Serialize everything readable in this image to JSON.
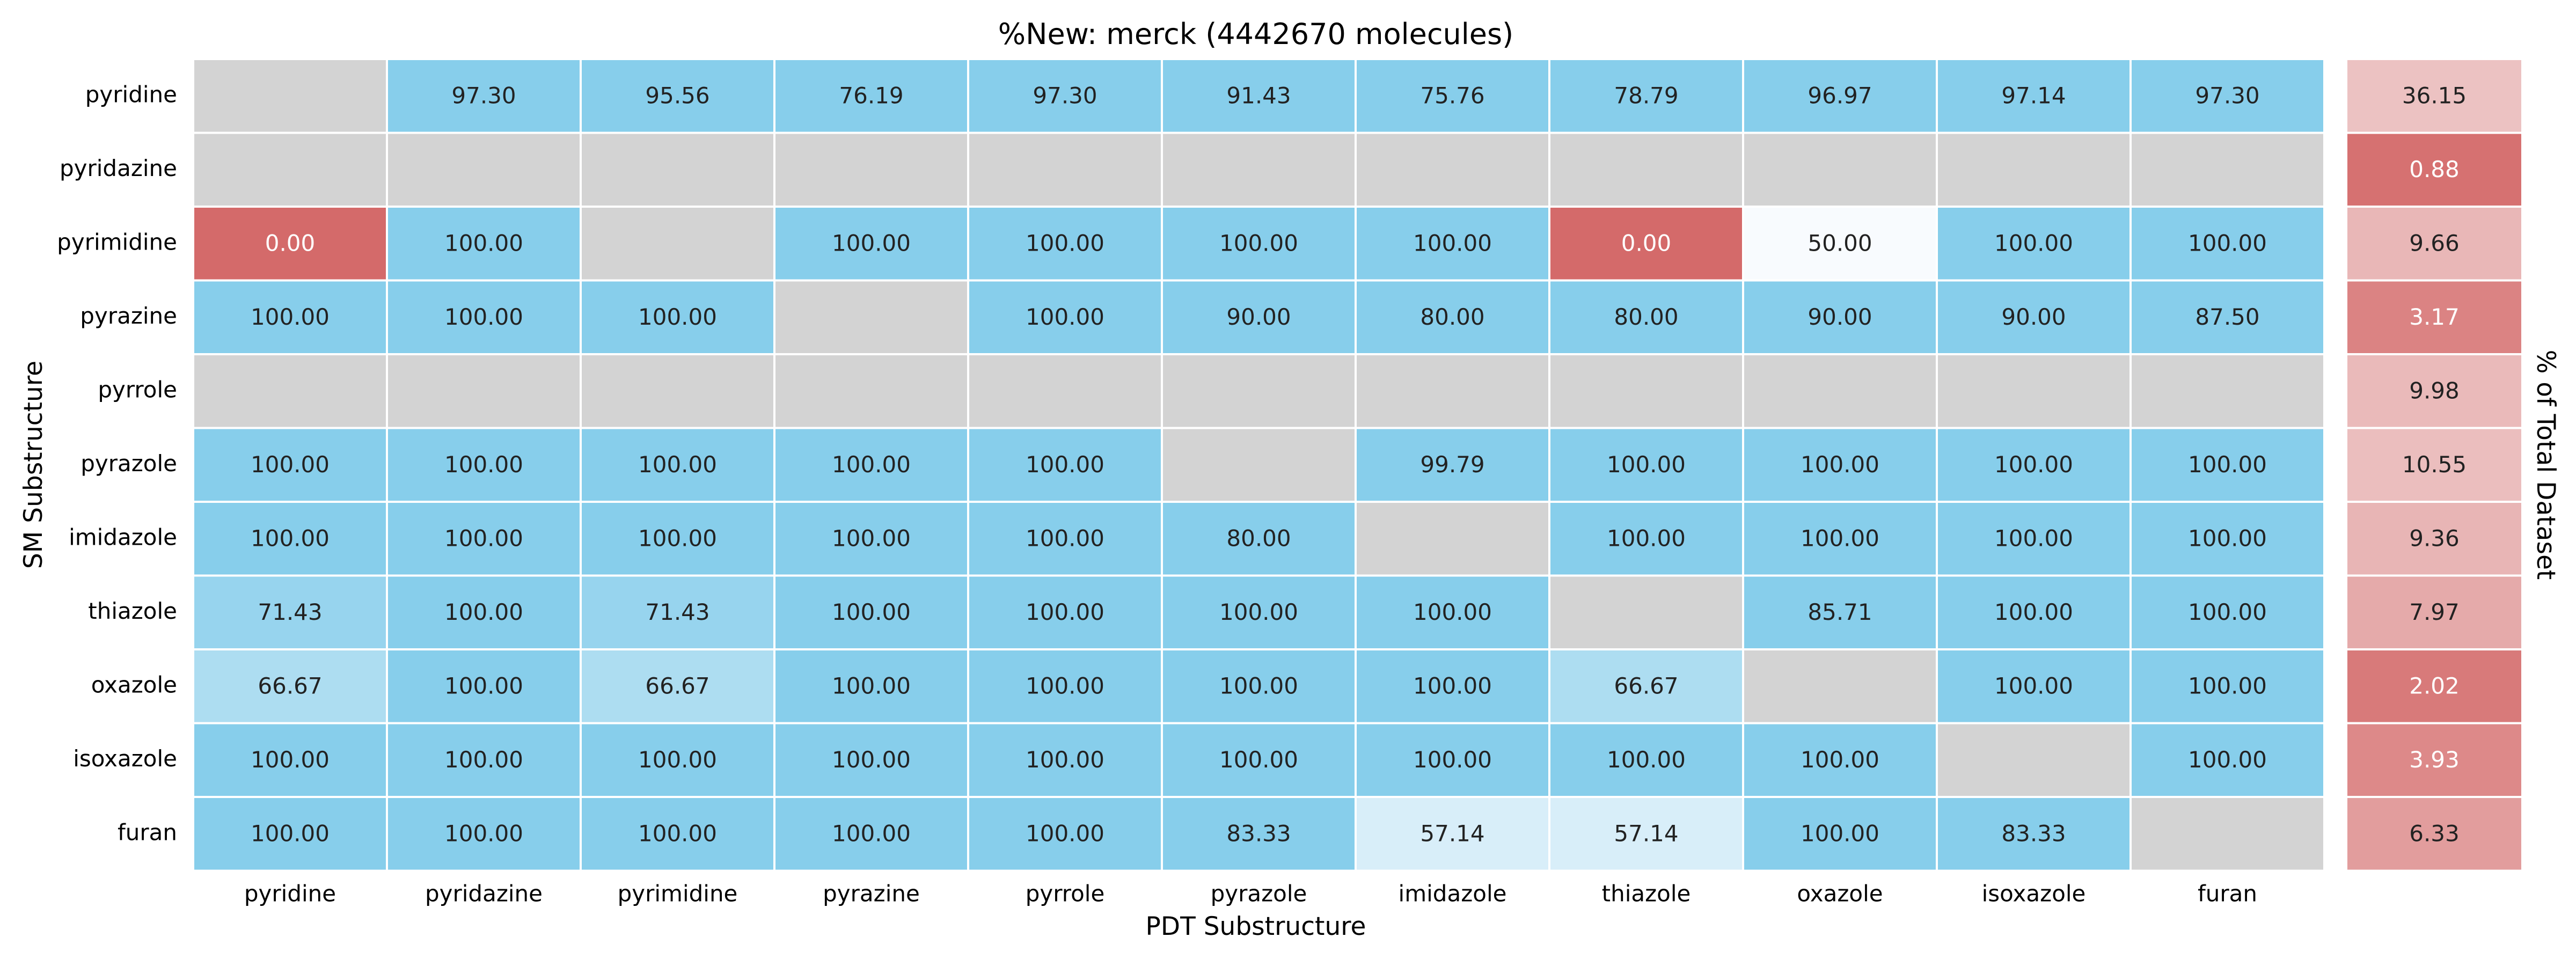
{
  "chart_data": {
    "type": "heatmap",
    "title": "%New: merck (4442670 molecules)",
    "xlabel": "PDT Substructure",
    "ylabel": "SM Substructure",
    "side_label": "% of Total Dataset",
    "x_categories": [
      "pyridine",
      "pyridazine",
      "pyrimidine",
      "pyrazine",
      "pyrrole",
      "pyrazole",
      "imidazole",
      "thiazole",
      "oxazole",
      "isoxazole",
      "furan"
    ],
    "y_categories": [
      "pyridine",
      "pyridazine",
      "pyrimidine",
      "pyrazine",
      "pyrrole",
      "pyrazole",
      "imidazole",
      "thiazole",
      "oxazole",
      "isoxazole",
      "furan"
    ],
    "values": [
      [
        null,
        97.3,
        95.56,
        76.19,
        97.3,
        91.43,
        75.76,
        78.79,
        96.97,
        97.14,
        97.3
      ],
      [
        null,
        null,
        null,
        null,
        null,
        null,
        null,
        null,
        null,
        null,
        null
      ],
      [
        0.0,
        100.0,
        null,
        100.0,
        100.0,
        100.0,
        100.0,
        0.0,
        50.0,
        100.0,
        100.0
      ],
      [
        100.0,
        100.0,
        100.0,
        null,
        100.0,
        90.0,
        80.0,
        80.0,
        90.0,
        90.0,
        87.5
      ],
      [
        null,
        null,
        null,
        null,
        null,
        null,
        null,
        null,
        null,
        null,
        null
      ],
      [
        100.0,
        100.0,
        100.0,
        100.0,
        100.0,
        null,
        99.79,
        100.0,
        100.0,
        100.0,
        100.0
      ],
      [
        100.0,
        100.0,
        100.0,
        100.0,
        100.0,
        80.0,
        null,
        100.0,
        100.0,
        100.0,
        100.0
      ],
      [
        71.43,
        100.0,
        71.43,
        100.0,
        100.0,
        100.0,
        100.0,
        null,
        85.71,
        100.0,
        100.0
      ],
      [
        66.67,
        100.0,
        66.67,
        100.0,
        100.0,
        100.0,
        100.0,
        66.67,
        null,
        100.0,
        100.0
      ],
      [
        100.0,
        100.0,
        100.0,
        100.0,
        100.0,
        100.0,
        100.0,
        100.0,
        100.0,
        null,
        100.0
      ],
      [
        100.0,
        100.0,
        100.0,
        100.0,
        100.0,
        83.33,
        57.14,
        57.14,
        100.0,
        83.33,
        null
      ]
    ],
    "side_values": [
      36.15,
      0.88,
      9.66,
      3.17,
      9.98,
      10.55,
      9.36,
      7.97,
      2.02,
      3.93,
      6.33
    ],
    "colors": {
      "missing": "#d3d3d3",
      "low": "#d46a6a",
      "mid": "#f8fbfe",
      "high": "#87ceeb",
      "grid": "#ffffff"
    },
    "grid": false
  }
}
